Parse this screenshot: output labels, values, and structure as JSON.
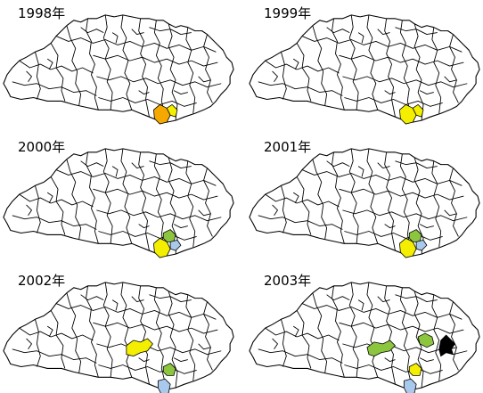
{
  "colors": {
    "orange": "#f5a800",
    "yellow": "#f4ef00",
    "green": "#8cc63f",
    "light_blue": "#a8c8ec",
    "black": "#000000"
  },
  "panels": [
    {
      "year_label": "1998年",
      "highlights": [
        {
          "region": "south-a",
          "color": "orange"
        },
        {
          "region": "south-b",
          "color": "yellow"
        }
      ]
    },
    {
      "year_label": "1999年",
      "highlights": [
        {
          "region": "south-a",
          "color": "yellow"
        },
        {
          "region": "south-b",
          "color": "yellow"
        }
      ]
    },
    {
      "year_label": "2000年",
      "highlights": [
        {
          "region": "south-a",
          "color": "yellow"
        },
        {
          "region": "south-c",
          "color": "green"
        },
        {
          "region": "south-d",
          "color": "light_blue"
        }
      ]
    },
    {
      "year_label": "2001年",
      "highlights": [
        {
          "region": "south-a",
          "color": "yellow"
        },
        {
          "region": "south-c",
          "color": "green"
        },
        {
          "region": "south-d",
          "color": "light_blue"
        }
      ]
    },
    {
      "year_label": "2002年",
      "highlights": [
        {
          "region": "central",
          "color": "yellow"
        },
        {
          "region": "south-c",
          "color": "green"
        },
        {
          "region": "south-e",
          "color": "light_blue"
        }
      ]
    },
    {
      "year_label": "2003年",
      "highlights": [
        {
          "region": "west-central",
          "color": "green"
        },
        {
          "region": "east-central",
          "color": "green"
        },
        {
          "region": "east",
          "color": "black"
        },
        {
          "region": "south-c",
          "color": "yellow"
        },
        {
          "region": "south-e",
          "color": "light_blue"
        }
      ]
    }
  ]
}
